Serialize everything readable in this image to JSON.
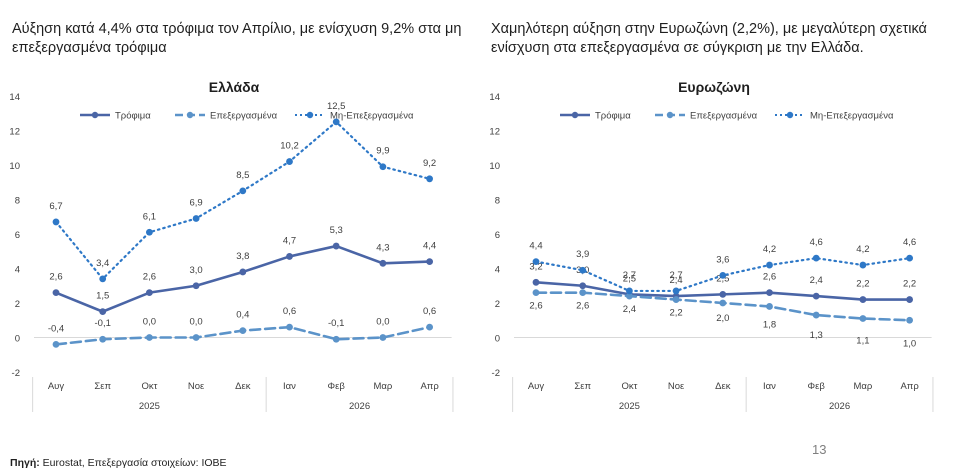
{
  "left_heading": "Αύξηση κατά 4,4% στα τρόφιμα τον Απρίλιο, με ενίσχυση 9,2% στα μη επεξεργασμένα τρόφιμα",
  "right_heading": "Χαμηλότερη αύξηση στην Ευρωζώνη (2,2%), με μεγαλύτερη σχετικά ενίσχυση στα επεξεργασμένα σε σύγκριση με την Ελλάδα.",
  "source_label": "Πηγή:",
  "source_text": " Eurostat, Επεξεργασία στοιχείων: ΙΟΒΕ",
  "page_number": "13",
  "chart_data": [
    {
      "type": "line",
      "title": "Ελλάδα",
      "categories": [
        "Αυγ",
        "Σεπ",
        "Οκτ",
        "Νοε",
        "Δεκ",
        "Ιαν",
        "Φεβ",
        "Μαρ",
        "Απρ"
      ],
      "year_groups": [
        {
          "label": "2025",
          "categories": [
            "Αυγ",
            "Σεπ",
            "Οκτ",
            "Νοε",
            "Δεκ"
          ]
        },
        {
          "label": "2026",
          "categories": [
            "Ιαν",
            "Φεβ",
            "Μαρ",
            "Απρ"
          ]
        }
      ],
      "ylim": [
        -2,
        14
      ],
      "yticks": [
        -2,
        0,
        2,
        4,
        6,
        8,
        10,
        12,
        14
      ],
      "grid": false,
      "legend_position": "top",
      "series": [
        {
          "name": "Τρόφιμα",
          "style": "solid",
          "color": "#4a65a6",
          "values": [
            2.6,
            1.5,
            2.6,
            3.0,
            3.8,
            4.7,
            5.3,
            4.3,
            4.4
          ],
          "labels": [
            "2,6",
            "1,5",
            "2,6",
            "3,0",
            "3,8",
            "4,7",
            "5,3",
            "4,3",
            "4,4"
          ]
        },
        {
          "name": "Επεξεργασμένα",
          "style": "dashed",
          "color": "#5b93c9",
          "values": [
            -0.4,
            -0.1,
            0.0,
            0.0,
            0.4,
            0.6,
            -0.1,
            0.0,
            0.6
          ],
          "labels": [
            "-0,4",
            "-0,1",
            "0,0",
            "0,0",
            "0,4",
            "0,6",
            "-0,1",
            "0,0",
            "0,6"
          ]
        },
        {
          "name": "Μη-Επεξεργασμένα",
          "style": "dotted",
          "color": "#2e78c7",
          "values": [
            6.7,
            3.4,
            6.1,
            6.9,
            8.5,
            10.2,
            12.5,
            9.9,
            9.2
          ],
          "labels": [
            "6,7",
            "3,4",
            "6,1",
            "6,9",
            "8,5",
            "10,2",
            "12,5",
            "9,9",
            "9,2"
          ]
        }
      ]
    },
    {
      "type": "line",
      "title": "Ευρωζώνη",
      "categories": [
        "Αυγ",
        "Σεπ",
        "Οκτ",
        "Νοε",
        "Δεκ",
        "Ιαν",
        "Φεβ",
        "Μαρ",
        "Απρ"
      ],
      "year_groups": [
        {
          "label": "2025",
          "categories": [
            "Αυγ",
            "Σεπ",
            "Οκτ",
            "Νοε",
            "Δεκ"
          ]
        },
        {
          "label": "2026",
          "categories": [
            "Ιαν",
            "Φεβ",
            "Μαρ",
            "Απρ"
          ]
        }
      ],
      "ylim": [
        -2,
        14
      ],
      "yticks": [
        -2,
        0,
        2,
        4,
        6,
        8,
        10,
        12,
        14
      ],
      "grid": false,
      "legend_position": "top",
      "series": [
        {
          "name": "Τρόφιμα",
          "style": "solid",
          "color": "#4a65a6",
          "values": [
            3.2,
            3.0,
            2.5,
            2.4,
            2.5,
            2.6,
            2.4,
            2.2,
            2.2
          ],
          "labels": [
            "3,2",
            "3,0",
            "2,5",
            "2,4",
            "2,5",
            "2,6",
            "2,4",
            "2,2",
            "2,2"
          ]
        },
        {
          "name": "Επεξεργασμένα",
          "style": "dashed",
          "color": "#5b93c9",
          "values": [
            2.6,
            2.6,
            2.4,
            2.2,
            2.0,
            1.8,
            1.3,
            1.1,
            1.0
          ],
          "labels": [
            "2,6",
            "2,6",
            "2,4",
            "2,2",
            "2,0",
            "1,8",
            "1,3",
            "1,1",
            "1,0"
          ]
        },
        {
          "name": "Μη-Επεξεργασμένα",
          "style": "dotted",
          "color": "#2e78c7",
          "values": [
            4.4,
            3.9,
            2.7,
            2.7,
            3.6,
            4.2,
            4.6,
            4.2,
            4.6
          ],
          "labels": [
            "4,4",
            "3,9",
            "2,7",
            "2,7",
            "3,6",
            "4,2",
            "4,6",
            "4,2",
            "4,6"
          ]
        }
      ]
    }
  ]
}
